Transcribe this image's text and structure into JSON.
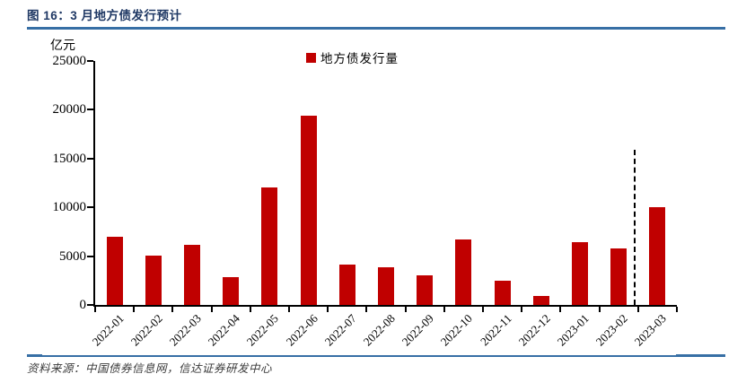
{
  "header": {
    "title": "图 16：3 月地方债发行预计"
  },
  "footer": {
    "source": "资料来源：中国债券信息网，信达证券研发中心"
  },
  "colors": {
    "bar_red": "#c00000",
    "rule_blue": "#376fa5",
    "title_navy": "#1f3864",
    "axis_black": "#000000"
  },
  "chart_data": {
    "type": "bar",
    "title": "图 16：3 月地方债发行预计",
    "unit_label": "亿元",
    "legend": "地方债发行量",
    "legend_position": "top-center",
    "grid": false,
    "categories": [
      "2022-01",
      "2022-02",
      "2022-03",
      "2022-04",
      "2022-05",
      "2022-06",
      "2022-07",
      "2022-08",
      "2022-09",
      "2022-10",
      "2022-11",
      "2022-12",
      "2023-01",
      "2023-02",
      "2023-03"
    ],
    "values": [
      7000,
      5100,
      6200,
      2850,
      12050,
      19350,
      4100,
      3900,
      3050,
      6700,
      2500,
      950,
      6400,
      5750,
      10000
    ],
    "xlabel": "",
    "ylabel": "亿元",
    "ylim": [
      0,
      25000
    ],
    "yticks": [
      0,
      5000,
      10000,
      15000,
      20000,
      25000
    ],
    "bar_color": "#c00000",
    "annotations": [
      {
        "type": "dashed-vline",
        "meaning": "forecast-separator",
        "between": [
          "2023-02",
          "2023-03"
        ]
      }
    ]
  }
}
